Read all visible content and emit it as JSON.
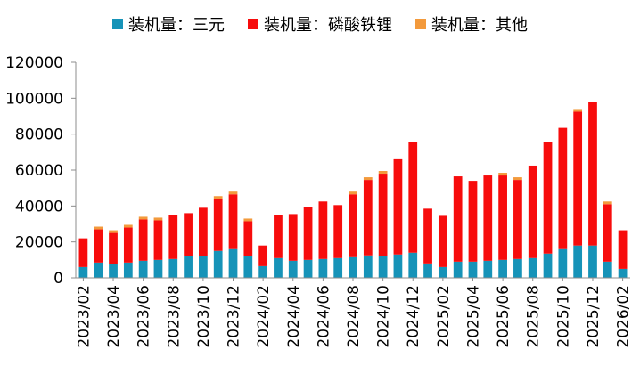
{
  "chart_data": {
    "type": "bar",
    "stacked": true,
    "title": "",
    "xlabel": "",
    "ylabel": "",
    "ylim": [
      0,
      120000
    ],
    "yticks": [
      "0",
      "20000",
      "40000",
      "60000",
      "80000",
      "100000",
      "120000"
    ],
    "grid": false,
    "legend_position": "top-center",
    "categories": [
      "2023/02",
      "2023/03",
      "2023/04",
      "2023/05",
      "2023/06",
      "2023/07",
      "2023/08",
      "2023/09",
      "2023/10",
      "2023/11",
      "2023/12",
      "2024/01",
      "2024/02",
      "2024/03",
      "2024/04",
      "2024/05",
      "2024/06",
      "2024/07",
      "2024/08",
      "2024/09",
      "2024/10",
      "2024/11",
      "2024/12",
      "2025/01",
      "2025/02",
      "2025/03",
      "2025/04",
      "2025/05",
      "2025/06",
      "2025/07",
      "2025/08",
      "2025/09",
      "2025/10",
      "2025/11",
      "2025/12",
      "2026/01",
      "2026/02"
    ],
    "xtick_labels": [
      "2023/02",
      "2023/04",
      "2023/06",
      "2023/08",
      "2023/10",
      "2023/12",
      "2024/02",
      "2024/04",
      "2024/06",
      "2024/08",
      "2024/10",
      "2024/12",
      "2025/02",
      "2025/04",
      "2025/06",
      "2025/08",
      "2025/10",
      "2025/12",
      "2026/02"
    ],
    "series": [
      {
        "name": "装机量：三元",
        "color": "#1693b8",
        "values": [
          6000,
          8500,
          7800,
          8500,
          9500,
          10000,
          10500,
          12000,
          12000,
          15000,
          16000,
          12000,
          6500,
          11000,
          9500,
          10000,
          10500,
          11000,
          11500,
          12500,
          12000,
          13000,
          14000,
          8000,
          6000,
          9000,
          9000,
          9500,
          10000,
          10500,
          11000,
          13500,
          16000,
          18000,
          18000,
          9000,
          5000
        ]
      },
      {
        "name": "装机量：磷酸铁锂",
        "color": "#f70c0c",
        "values": [
          16000,
          18500,
          17200,
          19500,
          23000,
          22000,
          24500,
          24000,
          27000,
          29000,
          30500,
          19500,
          11500,
          24000,
          26000,
          29500,
          32000,
          29500,
          35000,
          42000,
          46000,
          53500,
          61500,
          30500,
          28500,
          47500,
          45000,
          47500,
          47000,
          44000,
          51500,
          62000,
          67500,
          74500,
          80000,
          32000,
          21500
        ]
      },
      {
        "name": "装机量：其他",
        "color": "#f39a3c",
        "values": [
          0,
          1500,
          1500,
          1500,
          1500,
          1500,
          0,
          0,
          0,
          1500,
          1500,
          1500,
          0,
          0,
          0,
          0,
          0,
          0,
          1500,
          1500,
          1500,
          0,
          0,
          0,
          0,
          0,
          0,
          0,
          1500,
          1500,
          0,
          0,
          0,
          1500,
          0,
          1500,
          0
        ]
      }
    ]
  }
}
